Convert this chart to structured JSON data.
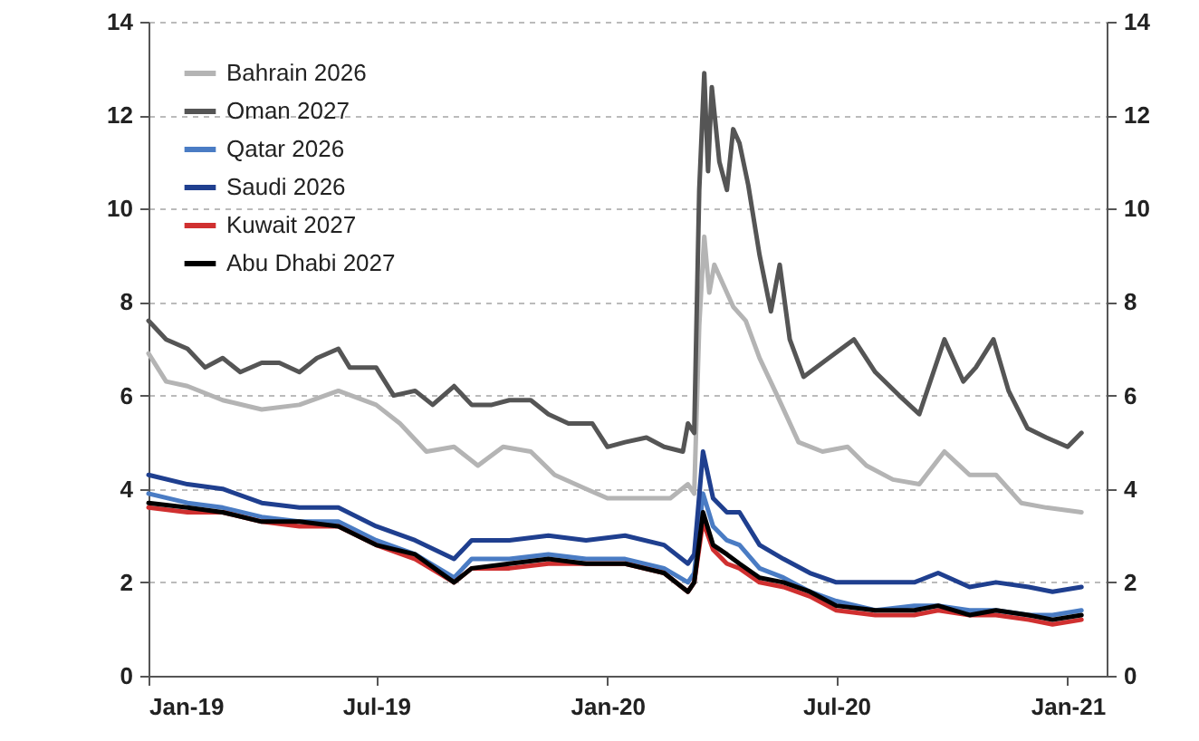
{
  "chart_data": {
    "type": "line",
    "xlim": [
      "2019-01-01",
      "2021-02-01"
    ],
    "xticks": [
      {
        "value": "2019-01-01",
        "label": "Jan-19"
      },
      {
        "value": "2019-07-01",
        "label": "Jul-19"
      },
      {
        "value": "2020-01-01",
        "label": "Jan-20"
      },
      {
        "value": "2020-07-01",
        "label": "Jul-20"
      },
      {
        "value": "2021-01-01",
        "label": "Jan-21"
      }
    ],
    "ylim": [
      0,
      14
    ],
    "yticks": [
      0,
      2,
      4,
      6,
      8,
      10,
      12,
      14
    ],
    "y2lim": [
      0,
      14
    ],
    "y2ticks": [
      0,
      2,
      4,
      6,
      8,
      10,
      12,
      14
    ],
    "grid": "y",
    "legend": "top left",
    "marker": "none",
    "line_style": "solid",
    "series": [
      {
        "name": "Bahrain 2026",
        "color": "#b4b4b4",
        "x": [
          "2019-01-01",
          "2019-01-15",
          "2019-02-01",
          "2019-03-01",
          "2019-04-01",
          "2019-05-01",
          "2019-06-01",
          "2019-07-01",
          "2019-07-20",
          "2019-08-10",
          "2019-09-01",
          "2019-09-20",
          "2019-10-10",
          "2019-11-01",
          "2019-11-20",
          "2019-12-15",
          "2020-01-01",
          "2020-02-01",
          "2020-02-20",
          "2020-03-05",
          "2020-03-10",
          "2020-03-14",
          "2020-03-18",
          "2020-03-22",
          "2020-03-26",
          "2020-04-10",
          "2020-04-20",
          "2020-05-01",
          "2020-05-15",
          "2020-06-01",
          "2020-06-20",
          "2020-07-10",
          "2020-07-25",
          "2020-08-15",
          "2020-09-05",
          "2020-09-25",
          "2020-10-15",
          "2020-11-05",
          "2020-11-25",
          "2020-12-15",
          "2021-01-12"
        ],
        "values": [
          6.9,
          6.3,
          6.2,
          5.9,
          5.7,
          5.8,
          6.1,
          5.8,
          5.4,
          4.8,
          4.9,
          4.5,
          4.9,
          4.8,
          4.3,
          4.0,
          3.8,
          3.8,
          3.8,
          4.1,
          3.9,
          7.5,
          9.4,
          8.2,
          8.8,
          7.9,
          7.6,
          6.8,
          6.0,
          5.0,
          4.8,
          4.9,
          4.5,
          4.2,
          4.1,
          4.8,
          4.3,
          4.3,
          3.7,
          3.6,
          3.5
        ]
      },
      {
        "name": "Oman 2027",
        "color": "#555555",
        "x": [
          "2019-01-01",
          "2019-01-15",
          "2019-02-01",
          "2019-02-15",
          "2019-03-01",
          "2019-03-15",
          "2019-04-01",
          "2019-04-15",
          "2019-05-01",
          "2019-05-15",
          "2019-06-01",
          "2019-06-10",
          "2019-07-01",
          "2019-07-15",
          "2019-08-01",
          "2019-08-15",
          "2019-09-01",
          "2019-09-15",
          "2019-10-01",
          "2019-10-15",
          "2019-11-01",
          "2019-11-15",
          "2019-12-01",
          "2019-12-20",
          "2020-01-01",
          "2020-01-15",
          "2020-02-01",
          "2020-02-15",
          "2020-03-01",
          "2020-03-05",
          "2020-03-10",
          "2020-03-14",
          "2020-03-18",
          "2020-03-21",
          "2020-03-24",
          "2020-03-30",
          "2020-04-05",
          "2020-04-10",
          "2020-04-15",
          "2020-04-22",
          "2020-05-01",
          "2020-05-10",
          "2020-05-17",
          "2020-05-25",
          "2020-06-05",
          "2020-06-25",
          "2020-07-15",
          "2020-08-01",
          "2020-08-20",
          "2020-09-05",
          "2020-09-25",
          "2020-10-10",
          "2020-10-20",
          "2020-11-03",
          "2020-11-15",
          "2020-11-30",
          "2020-12-15",
          "2021-01-01",
          "2021-01-12"
        ],
        "values": [
          7.6,
          7.2,
          7.0,
          6.6,
          6.8,
          6.5,
          6.7,
          6.7,
          6.5,
          6.8,
          7.0,
          6.6,
          6.6,
          6.0,
          6.1,
          5.8,
          6.2,
          5.8,
          5.8,
          5.9,
          5.9,
          5.6,
          5.4,
          5.4,
          4.9,
          5.0,
          5.1,
          4.9,
          4.8,
          5.4,
          5.2,
          10.4,
          12.9,
          10.8,
          12.6,
          11.0,
          10.4,
          11.7,
          11.4,
          10.5,
          9.0,
          7.8,
          8.8,
          7.2,
          6.4,
          6.8,
          7.2,
          6.5,
          6.0,
          5.6,
          7.2,
          6.3,
          6.6,
          7.2,
          6.1,
          5.3,
          5.1,
          4.9,
          5.2
        ]
      },
      {
        "name": "Qatar 2026",
        "color": "#4a7cc4",
        "x": [
          "2019-01-01",
          "2019-02-01",
          "2019-03-01",
          "2019-04-01",
          "2019-05-01",
          "2019-06-01",
          "2019-07-01",
          "2019-08-01",
          "2019-09-01",
          "2019-09-15",
          "2019-10-15",
          "2019-11-15",
          "2019-12-15",
          "2020-01-15",
          "2020-02-15",
          "2020-03-05",
          "2020-03-10",
          "2020-03-17",
          "2020-03-25",
          "2020-04-05",
          "2020-04-15",
          "2020-05-01",
          "2020-05-20",
          "2020-06-10",
          "2020-07-01",
          "2020-08-01",
          "2020-09-01",
          "2020-09-20",
          "2020-10-15",
          "2020-11-05",
          "2020-12-01",
          "2020-12-20",
          "2021-01-12"
        ],
        "values": [
          3.9,
          3.7,
          3.6,
          3.4,
          3.3,
          3.3,
          2.9,
          2.6,
          2.1,
          2.5,
          2.5,
          2.6,
          2.5,
          2.5,
          2.3,
          2.0,
          2.2,
          3.9,
          3.2,
          2.9,
          2.8,
          2.3,
          2.1,
          1.8,
          1.6,
          1.4,
          1.5,
          1.5,
          1.4,
          1.4,
          1.3,
          1.3,
          1.4
        ]
      },
      {
        "name": "Saudi 2026",
        "color": "#1f3f8f",
        "x": [
          "2019-01-01",
          "2019-02-01",
          "2019-03-01",
          "2019-04-01",
          "2019-05-01",
          "2019-06-01",
          "2019-07-01",
          "2019-08-01",
          "2019-09-01",
          "2019-09-15",
          "2019-10-15",
          "2019-11-15",
          "2019-12-15",
          "2020-01-15",
          "2020-02-15",
          "2020-03-05",
          "2020-03-10",
          "2020-03-17",
          "2020-03-25",
          "2020-04-05",
          "2020-04-15",
          "2020-05-01",
          "2020-05-20",
          "2020-06-10",
          "2020-07-01",
          "2020-08-01",
          "2020-09-01",
          "2020-09-20",
          "2020-10-15",
          "2020-11-05",
          "2020-12-01",
          "2020-12-20",
          "2021-01-12"
        ],
        "values": [
          4.3,
          4.1,
          4.0,
          3.7,
          3.6,
          3.6,
          3.2,
          2.9,
          2.5,
          2.9,
          2.9,
          3.0,
          2.9,
          3.0,
          2.8,
          2.4,
          2.6,
          4.8,
          3.8,
          3.5,
          3.5,
          2.8,
          2.5,
          2.2,
          2.0,
          2.0,
          2.0,
          2.2,
          1.9,
          2.0,
          1.9,
          1.8,
          1.9
        ]
      },
      {
        "name": "Kuwait 2027",
        "color": "#d03030",
        "x": [
          "2019-01-01",
          "2019-02-01",
          "2019-03-01",
          "2019-04-01",
          "2019-05-01",
          "2019-06-01",
          "2019-07-01",
          "2019-08-01",
          "2019-09-01",
          "2019-09-15",
          "2019-10-15",
          "2019-11-15",
          "2019-12-15",
          "2020-01-15",
          "2020-02-15",
          "2020-03-05",
          "2020-03-10",
          "2020-03-17",
          "2020-03-25",
          "2020-04-05",
          "2020-04-15",
          "2020-05-01",
          "2020-05-20",
          "2020-06-10",
          "2020-07-01",
          "2020-08-01",
          "2020-09-01",
          "2020-09-20",
          "2020-10-15",
          "2020-11-05",
          "2020-12-01",
          "2020-12-20",
          "2021-01-12"
        ],
        "values": [
          3.6,
          3.5,
          3.5,
          3.3,
          3.2,
          3.2,
          2.8,
          2.5,
          2.0,
          2.3,
          2.3,
          2.4,
          2.4,
          2.4,
          2.2,
          1.8,
          2.0,
          3.3,
          2.7,
          2.4,
          2.3,
          2.0,
          1.9,
          1.7,
          1.4,
          1.3,
          1.3,
          1.4,
          1.3,
          1.3,
          1.2,
          1.1,
          1.2
        ]
      },
      {
        "name": "Abu Dhabi 2027",
        "color": "#000000",
        "x": [
          "2019-01-01",
          "2019-02-01",
          "2019-03-01",
          "2019-04-01",
          "2019-05-01",
          "2019-06-01",
          "2019-07-01",
          "2019-08-01",
          "2019-09-01",
          "2019-09-15",
          "2019-10-15",
          "2019-11-15",
          "2019-12-15",
          "2020-01-15",
          "2020-02-15",
          "2020-03-05",
          "2020-03-10",
          "2020-03-17",
          "2020-03-25",
          "2020-04-05",
          "2020-04-15",
          "2020-05-01",
          "2020-05-20",
          "2020-06-10",
          "2020-07-01",
          "2020-08-01",
          "2020-09-01",
          "2020-09-20",
          "2020-10-15",
          "2020-11-05",
          "2020-12-01",
          "2020-12-20",
          "2021-01-12"
        ],
        "values": [
          3.7,
          3.6,
          3.5,
          3.3,
          3.3,
          3.2,
          2.8,
          2.6,
          2.0,
          2.3,
          2.4,
          2.5,
          2.4,
          2.4,
          2.2,
          1.8,
          2.0,
          3.5,
          2.8,
          2.6,
          2.4,
          2.1,
          2.0,
          1.8,
          1.5,
          1.4,
          1.4,
          1.5,
          1.3,
          1.4,
          1.3,
          1.2,
          1.3
        ]
      }
    ]
  }
}
